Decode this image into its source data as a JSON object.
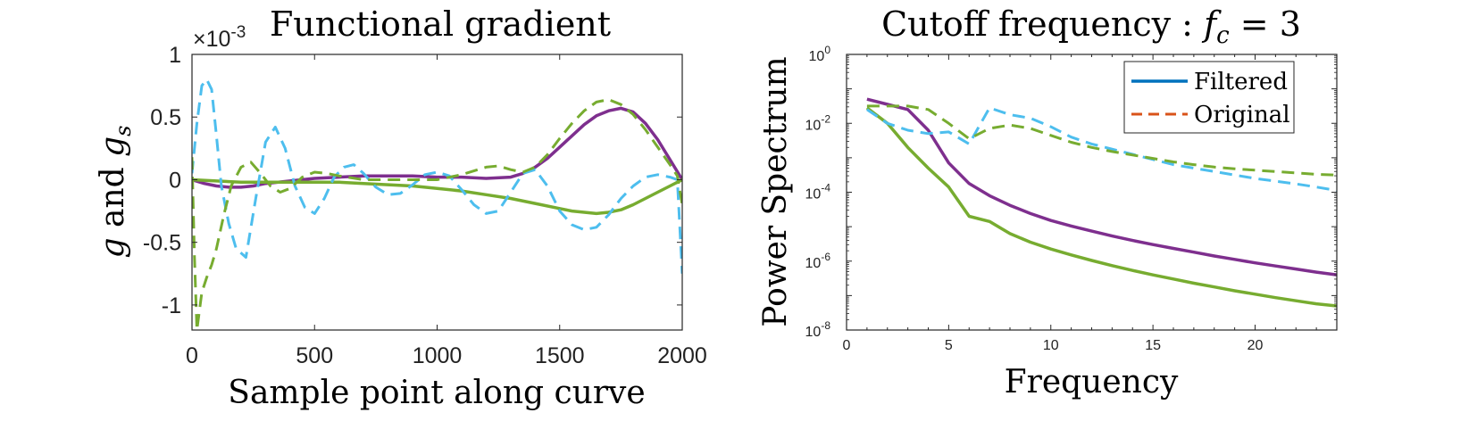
{
  "chart_data": [
    {
      "type": "line",
      "title": "Functional gradient",
      "xlabel": "Sample point along curve",
      "ylabel_parts": [
        "g",
        " and ",
        "g",
        "s"
      ],
      "exponent_label": "×10",
      "exponent_power": "-3",
      "xlim": [
        0,
        2000
      ],
      "ylim": [
        -1.2,
        1.0
      ],
      "xticks": [
        0,
        500,
        1000,
        1500,
        2000
      ],
      "yticks": [
        1,
        0.5,
        0,
        -0.5,
        -1
      ],
      "ytick_labels": [
        "1",
        "0.5",
        "0",
        "-0.5",
        "-1"
      ],
      "series": [
        {
          "color": "#7E2F8E",
          "dash": "solid",
          "x": [
            0,
            50,
            100,
            150,
            200,
            250,
            300,
            400,
            500,
            600,
            700,
            800,
            900,
            1000,
            1100,
            1200,
            1300,
            1350,
            1400,
            1450,
            1500,
            1550,
            1600,
            1650,
            1700,
            1750,
            1800,
            1850,
            1900,
            1950,
            2000
          ],
          "y": [
            0,
            -0.03,
            -0.05,
            -0.06,
            -0.06,
            -0.05,
            -0.03,
            -0.01,
            0.01,
            0.02,
            0.03,
            0.03,
            0.03,
            0.02,
            0.02,
            0.01,
            0.02,
            0.05,
            0.1,
            0.17,
            0.26,
            0.35,
            0.44,
            0.51,
            0.55,
            0.57,
            0.54,
            0.45,
            0.32,
            0.16,
            0.0
          ]
        },
        {
          "color": "#77AC30",
          "dash": "solid",
          "x": [
            0,
            100,
            200,
            300,
            400,
            500,
            600,
            700,
            800,
            900,
            1000,
            1100,
            1200,
            1300,
            1400,
            1500,
            1550,
            1600,
            1650,
            1700,
            1750,
            1800,
            1850,
            1900,
            1950,
            2000
          ],
          "y": [
            0,
            -0.01,
            -0.02,
            -0.02,
            -0.02,
            -0.02,
            -0.02,
            -0.03,
            -0.04,
            -0.05,
            -0.07,
            -0.09,
            -0.12,
            -0.15,
            -0.19,
            -0.23,
            -0.25,
            -0.26,
            -0.27,
            -0.26,
            -0.24,
            -0.2,
            -0.15,
            -0.1,
            -0.05,
            0.0
          ]
        },
        {
          "color": "#4DBEEE",
          "dash": "dashed",
          "x": [
            0,
            20,
            40,
            60,
            80,
            100,
            120,
            150,
            180,
            220,
            260,
            300,
            340,
            380,
            420,
            460,
            500,
            540,
            580,
            620,
            660,
            700,
            750,
            800,
            850,
            900,
            950,
            1000,
            1050,
            1100,
            1150,
            1200,
            1250,
            1300,
            1350,
            1400,
            1450,
            1500,
            1550,
            1600,
            1650,
            1700,
            1750,
            1800,
            1850,
            1900,
            1950,
            1980,
            2000
          ],
          "y": [
            0.05,
            0.45,
            0.75,
            0.8,
            0.72,
            0.35,
            -0.05,
            -0.35,
            -0.55,
            -0.62,
            -0.15,
            0.3,
            0.42,
            0.25,
            -0.05,
            -0.22,
            -0.27,
            -0.15,
            0.02,
            0.1,
            0.12,
            0.05,
            -0.06,
            -0.12,
            -0.11,
            -0.04,
            0.04,
            0.06,
            0.03,
            -0.08,
            -0.2,
            -0.27,
            -0.25,
            -0.1,
            0.05,
            0.08,
            -0.05,
            -0.25,
            -0.36,
            -0.4,
            -0.38,
            -0.28,
            -0.15,
            -0.05,
            0.02,
            0.04,
            0.02,
            0.0,
            -0.75
          ]
        },
        {
          "color": "#77AC30",
          "dash": "dashed",
          "x": [
            0,
            10,
            20,
            40,
            60,
            80,
            100,
            130,
            160,
            200,
            240,
            280,
            320,
            360,
            400,
            450,
            500,
            550,
            600,
            700,
            800,
            900,
            1000,
            1100,
            1200,
            1250,
            1300,
            1350,
            1400,
            1450,
            1500,
            1550,
            1600,
            1650,
            1700,
            1750,
            1800,
            1850,
            1900,
            1950,
            1980,
            2000
          ],
          "y": [
            0.18,
            -0.6,
            -1.2,
            -0.9,
            -0.78,
            -0.68,
            -0.55,
            -0.28,
            -0.05,
            0.1,
            0.14,
            0.05,
            -0.05,
            -0.1,
            -0.07,
            0.02,
            0.06,
            0.05,
            0.03,
            0.0,
            0.0,
            0.0,
            0.0,
            0.04,
            0.1,
            0.11,
            0.08,
            0.06,
            0.1,
            0.2,
            0.33,
            0.45,
            0.55,
            0.62,
            0.64,
            0.6,
            0.52,
            0.4,
            0.26,
            0.12,
            0.03,
            -0.2
          ]
        }
      ]
    },
    {
      "type": "line",
      "title_prefix": "Cutoff frequency : ",
      "title_f": "f",
      "title_sub": "c",
      "title_suffix": " = 3",
      "xlabel": "Frequency",
      "ylabel": "Power Spectrum",
      "xlim": [
        0,
        24
      ],
      "ylim_log10": [
        -8,
        0
      ],
      "log_scale_y": true,
      "xticks": [
        0,
        5,
        10,
        15,
        20
      ],
      "yticks_log10": [
        0,
        -2,
        -4,
        -6,
        -8
      ],
      "ytick_base": "10",
      "ytick_exps": [
        "0",
        "-2",
        "-4",
        "-6",
        "-8"
      ],
      "legend": {
        "position": "top-right",
        "entries": [
          {
            "label": "Filtered",
            "color": "#0072BD",
            "dash": "solid"
          },
          {
            "label": "Original",
            "color": "#D95319",
            "dash": "dashed"
          }
        ]
      },
      "series": [
        {
          "color": "#7E2F8E",
          "dash": "solid",
          "x": [
            1,
            2,
            3,
            4,
            5,
            6,
            7,
            8,
            9,
            10,
            11,
            12,
            13,
            14,
            15,
            16,
            17,
            18,
            19,
            20,
            21,
            22,
            23,
            24
          ],
          "y_log10": [
            -1.3,
            -1.45,
            -1.6,
            -2.2,
            -3.15,
            -3.75,
            -4.1,
            -4.38,
            -4.62,
            -4.82,
            -4.98,
            -5.13,
            -5.27,
            -5.4,
            -5.52,
            -5.63,
            -5.74,
            -5.85,
            -5.95,
            -6.05,
            -6.14,
            -6.23,
            -6.32,
            -6.4
          ]
        },
        {
          "color": "#77AC30",
          "dash": "solid",
          "x": [
            1,
            2,
            3,
            4,
            5,
            6,
            7,
            8,
            9,
            10,
            11,
            12,
            13,
            14,
            15,
            16,
            17,
            18,
            19,
            20,
            21,
            22,
            23,
            24
          ],
          "y_log10": [
            -1.55,
            -2.0,
            -2.7,
            -3.3,
            -3.85,
            -4.7,
            -4.85,
            -5.2,
            -5.45,
            -5.65,
            -5.82,
            -5.98,
            -6.13,
            -6.27,
            -6.4,
            -6.52,
            -6.64,
            -6.75,
            -6.86,
            -6.96,
            -7.06,
            -7.15,
            -7.24,
            -7.3
          ]
        },
        {
          "color": "#4DBEEE",
          "dash": "dashed",
          "x": [
            1,
            2,
            3,
            4,
            5,
            6,
            7,
            8,
            9,
            10,
            11,
            12,
            13,
            14,
            15,
            16,
            17,
            18,
            19,
            20,
            21,
            22,
            23,
            24
          ],
          "y_log10": [
            -1.6,
            -2.0,
            -2.2,
            -2.3,
            -2.25,
            -2.6,
            -1.55,
            -1.75,
            -1.85,
            -2.1,
            -2.4,
            -2.6,
            -2.75,
            -2.9,
            -3.05,
            -3.2,
            -3.3,
            -3.4,
            -3.5,
            -3.6,
            -3.68,
            -3.76,
            -3.85,
            -3.95
          ]
        },
        {
          "color": "#77AC30",
          "dash": "dashed",
          "x": [
            1,
            2,
            3,
            4,
            5,
            6,
            7,
            8,
            9,
            10,
            11,
            12,
            13,
            14,
            15,
            16,
            17,
            18,
            19,
            20,
            21,
            22,
            23,
            24
          ],
          "y_log10": [
            -1.5,
            -1.5,
            -1.5,
            -1.6,
            -2.0,
            -2.45,
            -2.15,
            -2.05,
            -2.15,
            -2.35,
            -2.55,
            -2.7,
            -2.82,
            -2.92,
            -3.02,
            -3.12,
            -3.2,
            -3.27,
            -3.32,
            -3.36,
            -3.4,
            -3.44,
            -3.48,
            -3.5
          ]
        }
      ]
    }
  ]
}
